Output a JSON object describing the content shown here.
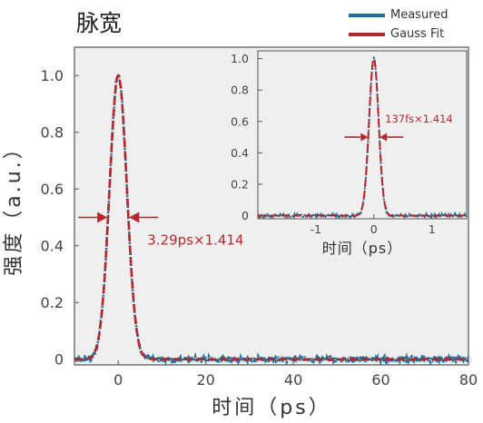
{
  "title": "脉宽",
  "colors": {
    "measured": "#1f6e95",
    "fit": "#b5272b",
    "plot_bg": "#efefef",
    "annotation": "#b5272b"
  },
  "chart_data": [
    {
      "type": "line",
      "xlabel": "时间（ps）",
      "ylabel": "强度（a.u.）",
      "xlim": [
        -10,
        80
      ],
      "ylim": [
        -0.02,
        1.1
      ],
      "xticks": [
        0,
        20,
        40,
        60,
        80
      ],
      "yticks": [
        0,
        0.2,
        0.4,
        0.6,
        0.8,
        1.0
      ],
      "ytick_labels": [
        "0",
        "0.2",
        "0.4",
        "0.6",
        "0.8",
        "1.0"
      ],
      "series": [
        {
          "name": "Measured",
          "model": "gaussian",
          "peak": 1.0,
          "center": 0,
          "fwhm": 4.65,
          "noise": 0.01
        },
        {
          "name": "Gauss Fit",
          "model": "gaussian",
          "peak": 1.0,
          "center": 0,
          "fwhm": 4.65
        }
      ],
      "annotation": {
        "text": "3.29ps×1.414",
        "y": 0.5,
        "x_left": -2.5,
        "x_right": 2.5
      },
      "grid": false,
      "legend": "top-right"
    },
    {
      "type": "line",
      "xlabel": "时间（ps）",
      "ylabel": "",
      "xlim": [
        -2,
        1.6
      ],
      "ylim": [
        -0.02,
        1.05
      ],
      "xticks": [
        -1,
        0,
        1
      ],
      "xtick_labels": [
        "-1",
        "0",
        "1"
      ],
      "yticks": [
        0,
        0.2,
        0.4,
        0.6,
        0.8,
        1.0
      ],
      "ytick_labels": [
        "0",
        "0.2",
        "0.4",
        "0.6",
        "0.8",
        "1.0"
      ],
      "series": [
        {
          "name": "Measured",
          "model": "gaussian",
          "peak": 1.0,
          "center": 0,
          "fwhm": 0.194,
          "noise": 0.01
        },
        {
          "name": "Gauss Fit",
          "model": "gaussian",
          "peak": 1.0,
          "center": 0,
          "fwhm": 0.194
        }
      ],
      "annotation": {
        "text": "137fs×1.414",
        "y": 0.5,
        "x_left": -0.1,
        "x_right": 0.1
      },
      "grid": false
    }
  ]
}
